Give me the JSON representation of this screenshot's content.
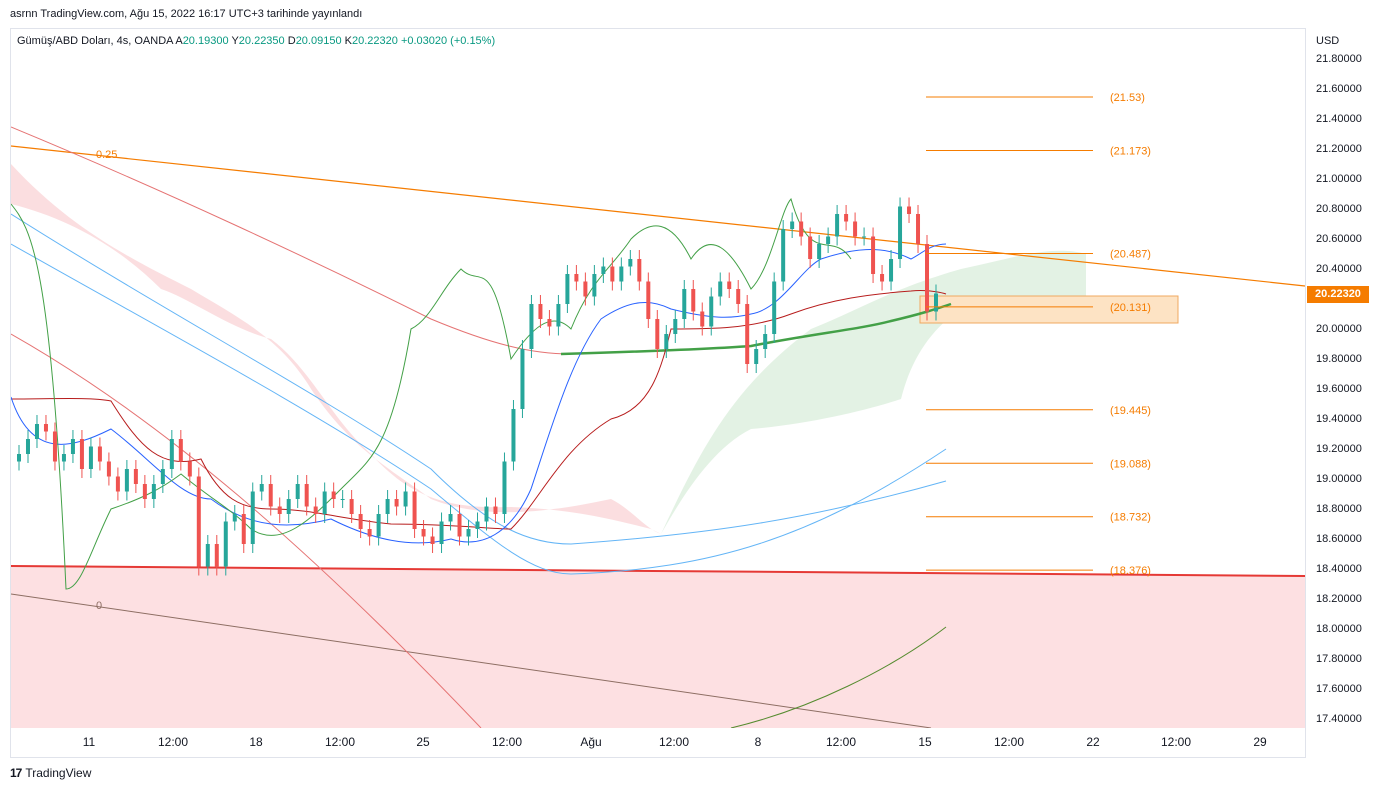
{
  "header": {
    "published": "asrnn TradingView.com, Ağu 15, 2022 16:17 UTC+3 tarihinde yayınlandı"
  },
  "legend": {
    "symbol": "Gümüş/ABD Doları, 4s, OANDA",
    "open_label": "A",
    "open": "20.19300",
    "high_label": "Y",
    "high": "20.22350",
    "low_label": "D",
    "low": "20.09150",
    "close_label": "K",
    "close": "20.22320",
    "change": "+0.03020 (+0.15%)"
  },
  "price_axis": {
    "currency": "USD",
    "current_price": "20.22320"
  },
  "footer": {
    "brand": "TradingView",
    "logo": "tv-logo-icon"
  },
  "colors": {
    "up": "#26a69a",
    "down": "#ef5350",
    "orange": "#f57c00",
    "cloud_green": "#43a047",
    "cloud_red": "#ef9a9a",
    "support": "#e53935",
    "blue_line": "#2962ff",
    "sky_line": "#64b5f6",
    "dark_red": "#b71c1c"
  },
  "chart_data": {
    "type": "line",
    "title": "Gümüş/ABD Doları, 4s, OANDA",
    "ylim": [
      17.35,
      21.9
    ],
    "y_ticks": [
      "21.80000",
      "21.60000",
      "21.40000",
      "21.20000",
      "21.00000",
      "20.80000",
      "20.60000",
      "20.40000",
      "20.20000",
      "20.00000",
      "19.80000",
      "19.60000",
      "19.40000",
      "19.20000",
      "19.00000",
      "18.80000",
      "18.60000",
      "18.40000",
      "18.20000",
      "18.00000",
      "17.80000",
      "17.60000",
      "17.40000"
    ],
    "x_ticks": [
      "11",
      "12:00",
      "18",
      "12:00",
      "25",
      "12:00",
      "Ağu",
      "12:00",
      "8",
      "12:00",
      "15",
      "12:00",
      "22",
      "12:00",
      "29"
    ],
    "fib_levels": [
      {
        "label": "(21.53)",
        "value": 21.53
      },
      {
        "label": "(21.173)",
        "value": 21.173
      },
      {
        "label": "(20.487)",
        "value": 20.487
      },
      {
        "label": "(20.131)",
        "value": 20.131
      },
      {
        "label": "(19.445)",
        "value": 19.445
      },
      {
        "label": "(19.088)",
        "value": 19.088
      },
      {
        "label": "(18.732)",
        "value": 18.732
      },
      {
        "label": "(18.376)",
        "value": 18.376
      }
    ],
    "channel_labels": [
      {
        "label": "0.25",
        "value": 21.15
      },
      {
        "label": "0",
        "value": 18.15
      }
    ],
    "support_level": 18.42,
    "close": [
      19.15,
      19.25,
      19.35,
      19.3,
      19.1,
      19.15,
      19.25,
      19.05,
      19.2,
      19.1,
      19.0,
      18.9,
      19.05,
      18.95,
      18.85,
      18.95,
      19.05,
      19.25,
      19.1,
      19.0,
      18.4,
      18.55,
      18.4,
      18.7,
      18.75,
      18.55,
      18.9,
      18.95,
      18.8,
      18.75,
      18.85,
      18.95,
      18.8,
      18.75,
      18.9,
      18.85,
      18.85,
      18.75,
      18.65,
      18.6,
      18.75,
      18.85,
      18.8,
      18.9,
      18.65,
      18.6,
      18.55,
      18.7,
      18.75,
      18.6,
      18.65,
      18.7,
      18.8,
      18.75,
      19.1,
      19.45,
      19.85,
      20.15,
      20.05,
      20.0,
      20.15,
      20.35,
      20.3,
      20.2,
      20.35,
      20.4,
      20.3,
      20.4,
      20.45,
      20.3,
      20.05,
      19.85,
      19.95,
      20.05,
      20.25,
      20.1,
      20.0,
      20.2,
      20.3,
      20.25,
      20.15,
      19.75,
      19.85,
      19.95,
      20.3,
      20.65,
      20.7,
      20.6,
      20.45,
      20.55,
      20.6,
      20.75,
      20.7,
      20.6,
      20.6,
      20.35,
      20.3,
      20.45,
      20.8,
      20.75,
      20.55,
      20.1,
      20.22
    ]
  }
}
